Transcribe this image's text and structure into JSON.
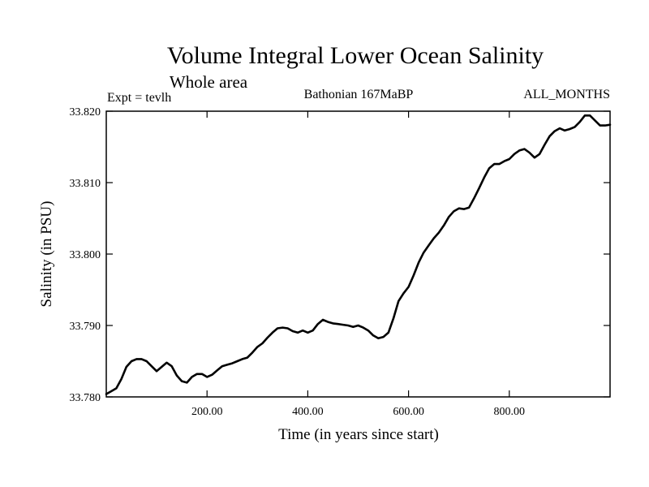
{
  "chart_data": {
    "type": "line",
    "title": "Volume Integral Lower Ocean Salinity",
    "subtitle": "Whole area",
    "experiment": "Expt = tevlh",
    "period": "Bathonian 167MaBP",
    "months": "ALL_MONTHS",
    "xlabel": "Time (in years since start)",
    "ylabel": "Salinity (in PSU)",
    "xlim": [
      0,
      1000
    ],
    "ylim": [
      33.78,
      33.82
    ],
    "x_ticks": [
      200,
      400,
      600,
      800
    ],
    "x_tick_labels": [
      "200.00",
      "400.00",
      "600.00",
      "800.00"
    ],
    "y_ticks": [
      33.78,
      33.79,
      33.8,
      33.81,
      33.82
    ],
    "y_tick_labels": [
      "33.780",
      "33.790",
      "33.800",
      "33.810",
      "33.820"
    ],
    "grid": false,
    "series": [
      {
        "name": "Salinity",
        "color": "#000000",
        "x": [
          0,
          10,
          20,
          30,
          40,
          50,
          60,
          70,
          80,
          90,
          100,
          110,
          120,
          130,
          140,
          150,
          160,
          170,
          180,
          190,
          200,
          210,
          220,
          230,
          240,
          250,
          260,
          270,
          280,
          290,
          300,
          310,
          320,
          330,
          340,
          350,
          360,
          370,
          380,
          390,
          400,
          410,
          420,
          430,
          440,
          450,
          460,
          470,
          480,
          490,
          500,
          510,
          520,
          530,
          540,
          550,
          560,
          570,
          580,
          590,
          600,
          610,
          620,
          630,
          640,
          650,
          660,
          670,
          680,
          690,
          700,
          710,
          720,
          730,
          740,
          750,
          760,
          770,
          780,
          790,
          800,
          810,
          820,
          830,
          840,
          850,
          860,
          870,
          880,
          890,
          900,
          910,
          920,
          930,
          940,
          950,
          960,
          970,
          980,
          990,
          1000
        ],
        "values": [
          33.7804,
          33.7808,
          33.7812,
          33.7825,
          33.7842,
          33.785,
          33.7853,
          33.7853,
          33.785,
          33.7843,
          33.7836,
          33.7842,
          33.7848,
          33.7843,
          33.783,
          33.7822,
          33.782,
          33.7828,
          33.7832,
          33.7832,
          33.7828,
          33.7831,
          33.7837,
          33.7843,
          33.7845,
          33.7847,
          33.785,
          33.7853,
          33.7855,
          33.7862,
          33.787,
          33.7875,
          33.7883,
          33.789,
          33.7896,
          33.7897,
          33.7896,
          33.7892,
          33.789,
          33.7893,
          33.789,
          33.7893,
          33.7902,
          33.7908,
          33.7905,
          33.7903,
          33.7902,
          33.7901,
          33.79,
          33.7898,
          33.79,
          33.7897,
          33.7893,
          33.7886,
          33.7882,
          33.7884,
          33.789,
          33.791,
          33.7934,
          33.7945,
          33.7954,
          33.797,
          33.7988,
          33.8002,
          33.8012,
          33.8022,
          33.803,
          33.804,
          33.8052,
          33.806,
          33.8064,
          33.8063,
          33.8065,
          33.8078,
          33.8092,
          33.8107,
          33.812,
          33.8126,
          33.8126,
          33.813,
          33.8133,
          33.814,
          33.8145,
          33.8147,
          33.8142,
          33.8135,
          33.814,
          33.8153,
          33.8165,
          33.8172,
          33.8176,
          33.8173,
          33.8175,
          33.8178,
          33.8185,
          33.8194,
          33.8194,
          33.8187,
          33.818,
          33.818,
          33.8181
        ]
      }
    ]
  }
}
